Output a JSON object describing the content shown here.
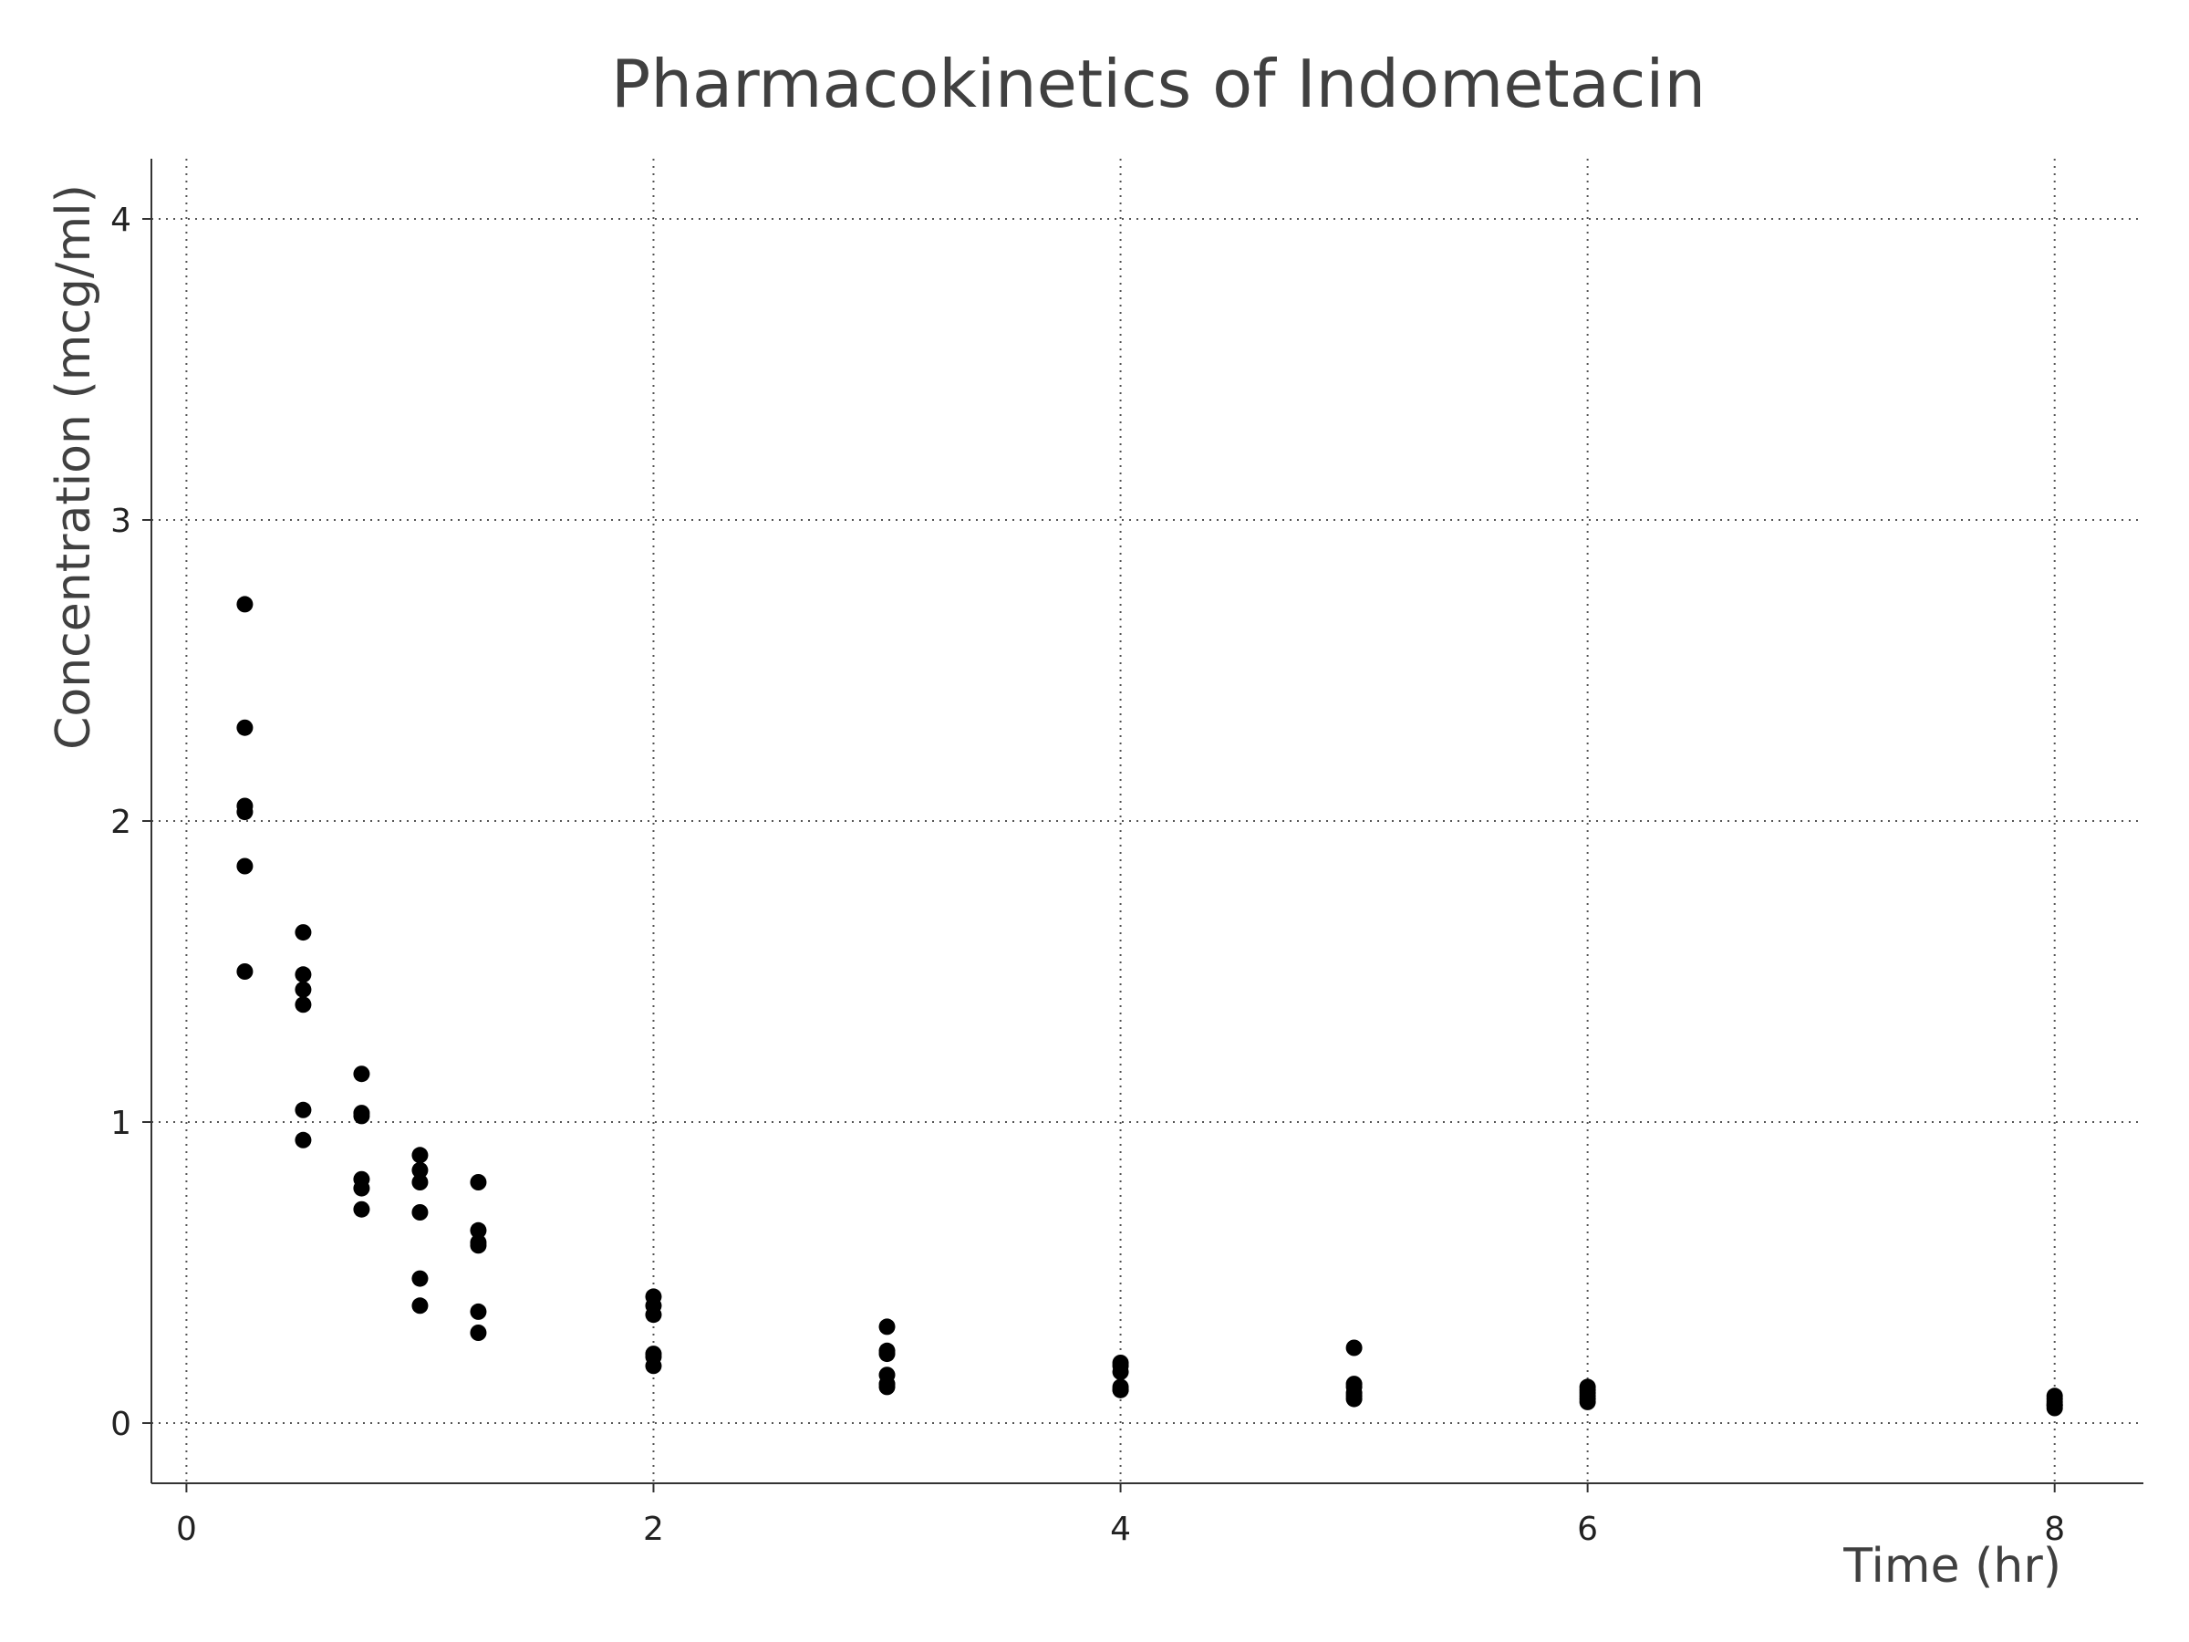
{
  "chart_data": {
    "type": "scatter",
    "title": "Pharmacokinetics of Indometacin",
    "xlabel": "Time (hr)",
    "ylabel": "Concentration (mcg/ml)",
    "xlim": [
      -0.15,
      8.38
    ],
    "ylim": [
      -0.2,
      4.2
    ],
    "x_ticks": [
      0,
      2,
      4,
      6,
      8
    ],
    "y_ticks": [
      0,
      1,
      2,
      3,
      4
    ],
    "x_tick_labels": [
      "0",
      "2",
      "4",
      "6",
      "8"
    ],
    "y_tick_labels": [
      "0",
      "1",
      "2",
      "3",
      "4"
    ],
    "grid": true,
    "legend": "none",
    "point_color": "#000000",
    "x": [
      0.25,
      0.25,
      0.25,
      0.25,
      0.25,
      0.25,
      0.5,
      0.5,
      0.5,
      0.5,
      0.5,
      0.5,
      0.75,
      0.75,
      0.75,
      0.75,
      0.75,
      0.75,
      1,
      1,
      1,
      1,
      1,
      1,
      1.25,
      1.25,
      1.25,
      1.25,
      1.25,
      1.25,
      2,
      2,
      2,
      2,
      2,
      2,
      3,
      3,
      3,
      3,
      3,
      3,
      4,
      4,
      4,
      4,
      4,
      4,
      5,
      5,
      5,
      5,
      5,
      5,
      6,
      6,
      6,
      6,
      6,
      6,
      8,
      8,
      8,
      8,
      8,
      8
    ],
    "y": [
      2.72,
      2.31,
      2.05,
      2.03,
      1.85,
      1.5,
      1.63,
      1.49,
      1.44,
      1.39,
      1.04,
      0.94,
      1.16,
      1.03,
      1.02,
      0.81,
      0.78,
      0.71,
      0.89,
      0.84,
      0.8,
      0.7,
      0.48,
      0.39,
      0.8,
      0.64,
      0.6,
      0.59,
      0.37,
      0.3,
      0.42,
      0.39,
      0.36,
      0.23,
      0.22,
      0.19,
      0.32,
      0.24,
      0.23,
      0.16,
      0.13,
      0.12,
      0.2,
      0.19,
      0.17,
      0.12,
      0.11,
      0.11,
      0.25,
      0.13,
      0.12,
      0.1,
      0.09,
      0.08,
      0.12,
      0.11,
      0.1,
      0.09,
      0.08,
      0.07,
      0.09,
      0.08,
      0.07,
      0.06,
      0.06,
      0.05
    ]
  }
}
